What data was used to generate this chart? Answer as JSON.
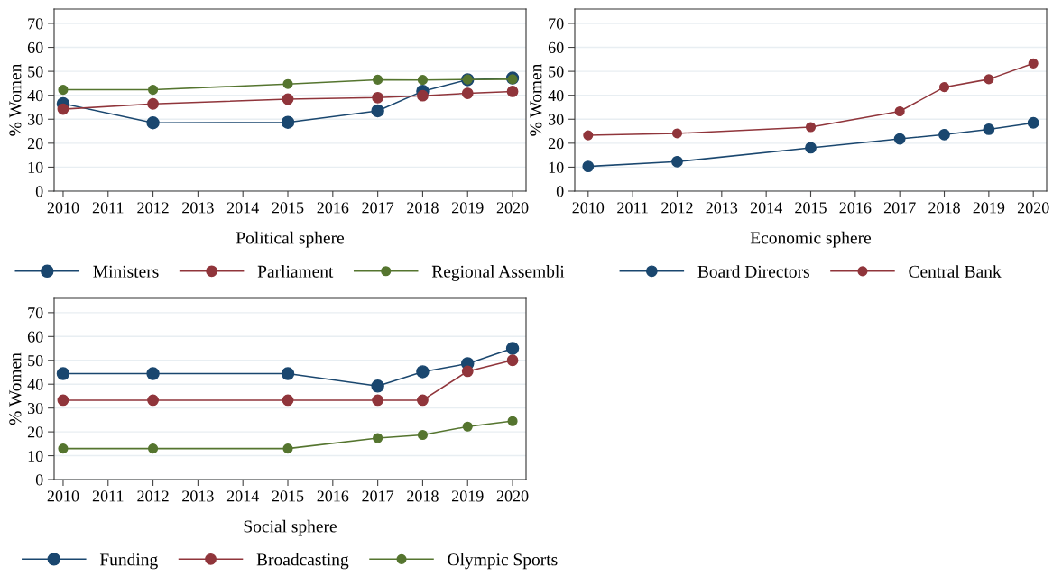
{
  "chart_data": [
    {
      "type": "line",
      "xlabel": "Political sphere",
      "ylabel": "% Women",
      "x": [
        2010,
        2012,
        2015,
        2017,
        2018,
        2019,
        2020
      ],
      "series": [
        {
          "name": "Ministers",
          "color": "#1a476f",
          "values": [
            36.5,
            28.5,
            28.7,
            33.5,
            41.7,
            46.5,
            47.2
          ]
        },
        {
          "name": "Parliament",
          "color": "#90353b",
          "values": [
            34.2,
            36.4,
            38.4,
            39.0,
            39.8,
            40.8,
            41.6
          ]
        },
        {
          "name": "Regional Assembli",
          "color": "#55752f",
          "values": [
            42.3,
            42.3,
            44.7,
            46.5,
            46.4,
            46.6,
            46.7
          ]
        }
      ],
      "xlim": [
        2009.8,
        2020.3
      ],
      "xticks": [
        2010,
        2011,
        2012,
        2013,
        2014,
        2015,
        2016,
        2017,
        2018,
        2019,
        2020
      ],
      "ylim": [
        0,
        76
      ],
      "yticks": [
        0,
        10,
        20,
        30,
        40,
        50,
        60,
        70
      ],
      "grid": "y",
      "legend": "bottom",
      "marker": "circle",
      "line_style": "solid"
    },
    {
      "type": "line",
      "xlabel": "Economic sphere",
      "ylabel": "% Women",
      "x": [
        2010,
        2012,
        2015,
        2017,
        2018,
        2019,
        2020
      ],
      "series": [
        {
          "name": "Board Directors",
          "color": "#1a476f",
          "values": [
            10.3,
            12.3,
            18.1,
            21.8,
            23.6,
            25.8,
            28.5
          ]
        },
        {
          "name": "Central Bank",
          "color": "#90353b",
          "values": [
            23.3,
            24.1,
            26.7,
            33.3,
            43.4,
            46.7,
            53.3
          ]
        }
      ],
      "xlim": [
        2009.7,
        2020.3
      ],
      "xticks": [
        2010,
        2011,
        2012,
        2013,
        2014,
        2015,
        2016,
        2017,
        2018,
        2019,
        2020
      ],
      "ylim": [
        0,
        76
      ],
      "yticks": [
        0,
        10,
        20,
        30,
        40,
        50,
        60,
        70
      ],
      "grid": "y",
      "legend": "bottom",
      "marker": "circle",
      "line_style": "solid"
    },
    {
      "type": "line",
      "xlabel": "Social sphere",
      "ylabel": "% Women",
      "x": [
        2010,
        2012,
        2015,
        2017,
        2018,
        2019,
        2020
      ],
      "series": [
        {
          "name": "Funding",
          "color": "#1a476f",
          "values": [
            44.4,
            44.4,
            44.4,
            39.2,
            45.2,
            48.6,
            55.0
          ]
        },
        {
          "name": "Broadcasting",
          "color": "#90353b",
          "values": [
            33.3,
            33.3,
            33.3,
            33.3,
            33.3,
            45.4,
            50.0
          ]
        },
        {
          "name": "Olympic Sports",
          "color": "#55752f",
          "values": [
            13.0,
            13.0,
            13.0,
            17.4,
            18.7,
            22.2,
            24.5
          ]
        }
      ],
      "xlim": [
        2009.8,
        2020.3
      ],
      "xticks": [
        2010,
        2011,
        2012,
        2013,
        2014,
        2015,
        2016,
        2017,
        2018,
        2019,
        2020
      ],
      "ylim": [
        0,
        76
      ],
      "yticks": [
        0,
        10,
        20,
        30,
        40,
        50,
        60,
        70
      ],
      "grid": "y",
      "legend": "bottom",
      "marker": "circle",
      "line_style": "solid"
    }
  ]
}
